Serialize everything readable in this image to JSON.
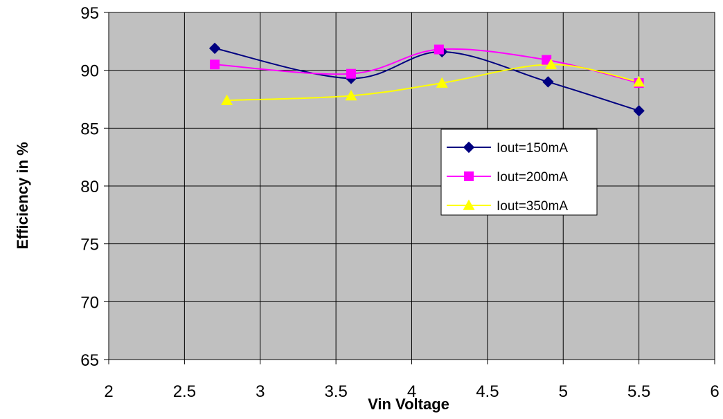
{
  "chart_data": {
    "type": "line",
    "title": "",
    "xlabel": "Vin Voltage",
    "ylabel": "Efficiency in %",
    "xlim": [
      2,
      6
    ],
    "ylim": [
      65,
      95
    ],
    "xticks": [
      2,
      2.5,
      3,
      3.5,
      4,
      4.5,
      5,
      5.5,
      6
    ],
    "xtick_labels": [
      "2",
      "2.5",
      "3",
      "3.5",
      "4",
      "4.5",
      "5",
      "5.5",
      "6"
    ],
    "yticks": [
      65,
      70,
      75,
      80,
      85,
      90,
      95
    ],
    "ytick_labels": [
      "65",
      "70",
      "75",
      "80",
      "85",
      "90",
      "95"
    ],
    "grid": true,
    "plot_background": "#c0c0c0",
    "legend_position": "right-center",
    "smoothed": true,
    "series": [
      {
        "name": "Iout=150mA",
        "color": "#000080",
        "marker": "diamond",
        "x": [
          2.7,
          3.6,
          4.2,
          4.9,
          5.5
        ],
        "y": [
          91.9,
          89.3,
          91.6,
          89.0,
          86.5
        ]
      },
      {
        "name": "Iout=200mA",
        "color": "#ff00ff",
        "marker": "square",
        "x": [
          2.7,
          3.6,
          4.18,
          4.89,
          5.5
        ],
        "y": [
          90.5,
          89.7,
          91.8,
          90.9,
          88.9
        ]
      },
      {
        "name": "Iout=350mA",
        "color": "#ffff00",
        "marker": "triangle",
        "x": [
          2.78,
          3.6,
          4.2,
          4.92,
          5.5
        ],
        "y": [
          87.4,
          87.8,
          88.9,
          90.5,
          89.0
        ]
      }
    ]
  }
}
